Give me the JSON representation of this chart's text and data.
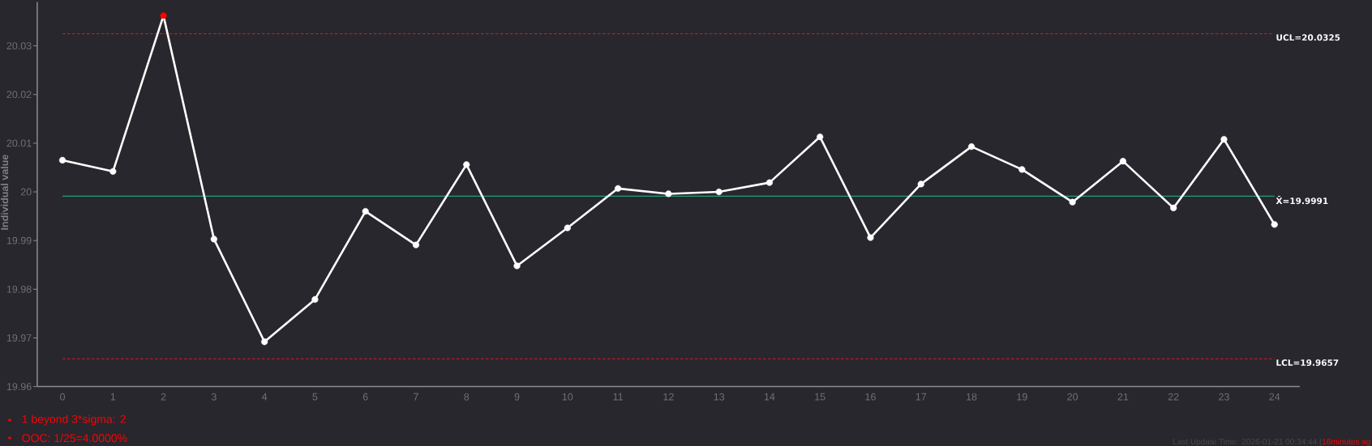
{
  "chart_data": {
    "type": "line",
    "ylabel": "Individual value",
    "categories": [
      "0",
      "1",
      "2",
      "3",
      "4",
      "5",
      "6",
      "7",
      "8",
      "9",
      "10",
      "11",
      "12",
      "13",
      "14",
      "15",
      "16",
      "17",
      "18",
      "19",
      "20",
      "21",
      "22",
      "23",
      "24"
    ],
    "series": [
      {
        "color": "#ffffff",
        "colors": [
          "#ffffff",
          "#ffffff",
          "#ff0000",
          "#ffffff",
          "#ffffff",
          "#ffffff",
          "#ffffff",
          "#ffffff",
          "#ffffff",
          "#ffffff",
          "#ffffff",
          "#ffffff",
          "#ffffff",
          "#ffffff",
          "#ffffff",
          "#ffffff",
          "#ffffff",
          "#ffffff",
          "#ffffff",
          "#ffffff",
          "#ffffff",
          "#ffffff",
          "#ffffff",
          "#ffffff",
          "#ffffff"
        ],
        "values": [
          20.0065,
          20.0042,
          20.0362,
          19.9903,
          19.9692,
          19.9779,
          19.996,
          19.9891,
          20.0056,
          19.9848,
          19.9926,
          20.0007,
          19.9996,
          20,
          20.0019,
          20.0113,
          19.9906,
          20.0016,
          20.0093,
          20.0046,
          19.9979,
          20.0063,
          19.9967,
          20.0108,
          19.9933
        ]
      }
    ],
    "ylim": [
      19.96,
      20.039
    ],
    "yticks": [
      19.96,
      19.97,
      19.98,
      19.99,
      20,
      20.01,
      20.02,
      20.03
    ],
    "ref_lines": [
      {
        "axis": "y",
        "value": 20.0325,
        "label": "UCL=20.0325",
        "color": "#c8171c",
        "line_style": "dashed"
      },
      {
        "axis": "y",
        "value": 19.9991,
        "label": "X̄=19.9991",
        "color": "#24a07a",
        "line_style": "solid"
      },
      {
        "axis": "y",
        "value": 19.9657,
        "label": "LCL=19.9657",
        "color": "#c8171c",
        "line_style": "dashed"
      }
    ],
    "annotations": [
      "1 beyond 3*sigma: 2",
      "OOC: 1/25=4.0000%",
      "Last Update Time: 2026-01-21 00:34:44 (",
      "16minutes ag"
    ],
    "marker": "circle",
    "line_style": "solid"
  }
}
